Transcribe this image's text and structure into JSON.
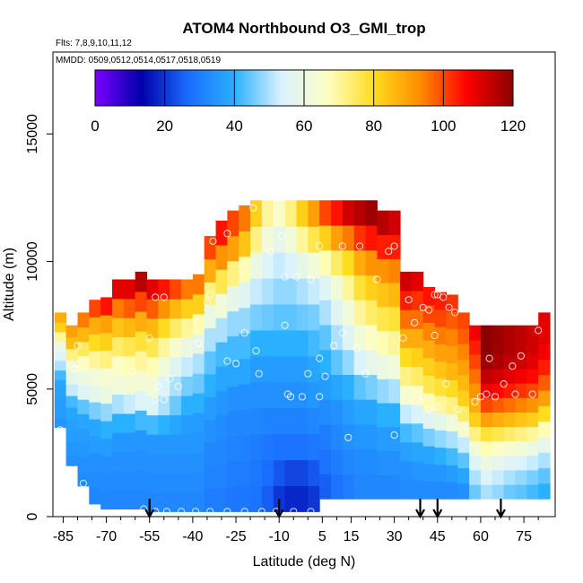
{
  "chart_data": {
    "type": "heatmap",
    "title": "ATOM4 Northbound O3_GMI_trop",
    "flights_label": "Flts: 7,8,9,10,11,12",
    "dates_label": "MMDD: 0509,0512,0514,0517,0518,0519",
    "xlabel": "Latitude (deg N)",
    "ylabel": "Altitude (m)",
    "xlim": [
      -87,
      84
    ],
    "ylim": [
      0,
      18000
    ],
    "x_ticks": [
      -85,
      -70,
      -55,
      -40,
      -25,
      -10,
      5,
      15,
      30,
      45,
      60,
      75
    ],
    "x_minor_ticks": [
      -80,
      -75,
      -65,
      -60,
      -50,
      -45,
      -35,
      -30,
      -20,
      -15,
      -5,
      0,
      10,
      20,
      25,
      35,
      40,
      50,
      55,
      65,
      70,
      80
    ],
    "y_ticks": [
      0,
      5000,
      10000,
      15000
    ],
    "colorbar": {
      "min": 0,
      "max": 120,
      "ticks": [
        0,
        20,
        40,
        60,
        80,
        100,
        120
      ],
      "colors": [
        "#7b00ff",
        "#0000aa",
        "#1a6cff",
        "#29b0ff",
        "#d8f2ff",
        "#ffffc4",
        "#ffdc1e",
        "#ff8c00",
        "#ff0000",
        "#8b0000"
      ],
      "unit": ""
    },
    "profile_markers_lat": [
      -55,
      -10,
      39,
      45,
      67
    ],
    "columns": [
      {
        "lat": -86,
        "top": 8000,
        "bottom": 3500,
        "values": [
          35,
          36,
          36,
          37,
          38,
          42,
          50,
          55,
          60,
          70,
          82,
          88
        ]
      },
      {
        "lat": -82,
        "top": 7500,
        "bottom": 2000,
        "values": [
          34,
          35,
          36,
          37,
          38,
          42,
          52,
          58,
          62,
          72,
          85,
          90
        ]
      },
      {
        "lat": -78,
        "top": 8000,
        "bottom": 1200,
        "values": [
          33,
          34,
          35,
          36,
          38,
          44,
          55,
          60,
          66,
          75,
          86,
          95
        ]
      },
      {
        "lat": -74,
        "top": 8500,
        "bottom": 500,
        "values": [
          32,
          33,
          34,
          36,
          38,
          46,
          58,
          62,
          70,
          80,
          88,
          100
        ]
      },
      {
        "lat": -70,
        "top": 8600,
        "bottom": 300,
        "values": [
          32,
          33,
          34,
          36,
          40,
          48,
          60,
          64,
          72,
          82,
          90,
          105
        ]
      },
      {
        "lat": -66,
        "top": 9300,
        "bottom": 300,
        "values": [
          32,
          33,
          34,
          35,
          40,
          50,
          62,
          66,
          74,
          84,
          95,
          110
        ]
      },
      {
        "lat": -62,
        "top": 9300,
        "bottom": 300,
        "values": [
          32,
          33,
          34,
          35,
          40,
          52,
          63,
          68,
          76,
          86,
          98,
          110
        ]
      },
      {
        "lat": -58,
        "top": 9600,
        "bottom": 300,
        "values": [
          32,
          33,
          34,
          35,
          42,
          55,
          63,
          70,
          78,
          88,
          100,
          115
        ]
      },
      {
        "lat": -54,
        "top": 9300,
        "bottom": 200,
        "values": [
          32,
          33,
          34,
          35,
          42,
          55,
          62,
          68,
          76,
          86,
          98,
          110
        ]
      },
      {
        "lat": -50,
        "top": 9300,
        "bottom": 200,
        "values": [
          32,
          33,
          34,
          35,
          40,
          50,
          55,
          62,
          70,
          80,
          92,
          105
        ]
      },
      {
        "lat": -46,
        "top": 9300,
        "bottom": 200,
        "values": [
          32,
          33,
          34,
          35,
          38,
          45,
          50,
          56,
          64,
          74,
          86,
          100
        ]
      },
      {
        "lat": -42,
        "top": 9300,
        "bottom": 200,
        "values": [
          32,
          33,
          34,
          35,
          36,
          40,
          46,
          52,
          60,
          70,
          82,
          95
        ]
      },
      {
        "lat": -38,
        "top": 9500,
        "bottom": 200,
        "values": [
          32,
          33,
          34,
          35,
          36,
          40,
          45,
          50,
          58,
          68,
          82,
          95
        ]
      },
      {
        "lat": -34,
        "top": 11000,
        "bottom": 200,
        "values": [
          30,
          31,
          32,
          34,
          36,
          40,
          44,
          50,
          60,
          72,
          88,
          100
        ]
      },
      {
        "lat": -30,
        "top": 11600,
        "bottom": 200,
        "values": [
          30,
          31,
          32,
          33,
          35,
          38,
          42,
          50,
          62,
          76,
          92,
          105
        ]
      },
      {
        "lat": -26,
        "top": 12000,
        "bottom": 200,
        "values": [
          29,
          30,
          31,
          32,
          34,
          38,
          42,
          48,
          58,
          72,
          90,
          100
        ]
      },
      {
        "lat": -22,
        "top": 12200,
        "bottom": 200,
        "values": [
          29,
          30,
          31,
          32,
          34,
          38,
          42,
          48,
          56,
          68,
          84,
          95
        ]
      },
      {
        "lat": -18,
        "top": 12400,
        "bottom": 200,
        "values": [
          28,
          29,
          30,
          32,
          34,
          36,
          40,
          46,
          52,
          60,
          72,
          82
        ]
      },
      {
        "lat": -14,
        "top": 12400,
        "bottom": 200,
        "values": [
          25,
          27,
          29,
          31,
          34,
          36,
          40,
          45,
          50,
          55,
          62,
          70
        ]
      },
      {
        "lat": -10,
        "top": 12400,
        "bottom": 200,
        "values": [
          20,
          24,
          28,
          31,
          34,
          36,
          40,
          44,
          48,
          52,
          58,
          65
        ]
      },
      {
        "lat": -6,
        "top": 12400,
        "bottom": 200,
        "values": [
          18,
          22,
          28,
          31,
          34,
          36,
          40,
          44,
          48,
          54,
          62,
          72
        ]
      },
      {
        "lat": -2,
        "top": 12400,
        "bottom": 200,
        "values": [
          18,
          22,
          28,
          31,
          34,
          36,
          40,
          45,
          50,
          58,
          70,
          82
        ]
      },
      {
        "lat": 2,
        "top": 12400,
        "bottom": 200,
        "values": [
          20,
          24,
          29,
          32,
          35,
          38,
          42,
          46,
          52,
          62,
          76,
          90
        ]
      },
      {
        "lat": 6,
        "top": 12400,
        "bottom": 700,
        "values": [
          25,
          28,
          30,
          33,
          36,
          40,
          44,
          50,
          56,
          68,
          82,
          100
        ]
      },
      {
        "lat": 10,
        "top": 12400,
        "bottom": 700,
        "values": [
          28,
          30,
          32,
          34,
          38,
          44,
          50,
          56,
          62,
          74,
          90,
          105
        ]
      },
      {
        "lat": 14,
        "top": 12400,
        "bottom": 700,
        "values": [
          30,
          32,
          34,
          36,
          40,
          48,
          56,
          62,
          70,
          80,
          95,
          112
        ]
      },
      {
        "lat": 18,
        "top": 12400,
        "bottom": 700,
        "values": [
          32,
          33,
          35,
          38,
          44,
          54,
          62,
          70,
          78,
          88,
          102,
          115
        ]
      },
      {
        "lat": 22,
        "top": 12400,
        "bottom": 700,
        "values": [
          32,
          33,
          35,
          38,
          46,
          58,
          66,
          74,
          82,
          92,
          105,
          118
        ]
      },
      {
        "lat": 26,
        "top": 12000,
        "bottom": 700,
        "values": [
          32,
          34,
          36,
          40,
          48,
          60,
          68,
          76,
          84,
          92,
          104,
          115
        ]
      },
      {
        "lat": 30,
        "top": 12000,
        "bottom": 700,
        "values": [
          32,
          34,
          36,
          40,
          50,
          62,
          70,
          78,
          86,
          94,
          104,
          112
        ]
      },
      {
        "lat": 34,
        "top": 9600,
        "bottom": 700,
        "values": [
          33,
          34,
          37,
          42,
          52,
          64,
          72,
          80,
          88,
          96,
          104,
          112
        ]
      },
      {
        "lat": 38,
        "top": 9600,
        "bottom": 700,
        "values": [
          33,
          35,
          38,
          44,
          54,
          66,
          74,
          82,
          88,
          96,
          102,
          110
        ]
      },
      {
        "lat": 42,
        "top": 9000,
        "bottom": 700,
        "values": [
          33,
          35,
          38,
          46,
          56,
          68,
          76,
          82,
          88,
          94,
          100,
          105
        ]
      },
      {
        "lat": 46,
        "top": 8800,
        "bottom": 700,
        "values": [
          33,
          35,
          40,
          48,
          58,
          70,
          78,
          84,
          90,
          95,
          100,
          104
        ]
      },
      {
        "lat": 50,
        "top": 8700,
        "bottom": 700,
        "values": [
          33,
          36,
          42,
          50,
          62,
          72,
          80,
          86,
          90,
          94,
          98,
          102
        ]
      },
      {
        "lat": 54,
        "top": 8000,
        "bottom": 700,
        "values": [
          34,
          38,
          44,
          52,
          64,
          74,
          82,
          86,
          90,
          94,
          98,
          100
        ]
      },
      {
        "lat": 58,
        "top": 7500,
        "bottom": 700,
        "values": [
          45,
          50,
          55,
          62,
          72,
          82,
          88,
          92,
          96,
          100,
          104,
          108
        ]
      },
      {
        "lat": 62,
        "top": 7500,
        "bottom": 700,
        "values": [
          50,
          55,
          60,
          68,
          78,
          90,
          100,
          108,
          114,
          118,
          120,
          120
        ]
      },
      {
        "lat": 66,
        "top": 7500,
        "bottom": 700,
        "values": [
          48,
          52,
          58,
          66,
          76,
          88,
          98,
          106,
          112,
          116,
          118,
          118
        ]
      },
      {
        "lat": 70,
        "top": 7500,
        "bottom": 700,
        "values": [
          45,
          50,
          56,
          64,
          74,
          86,
          96,
          104,
          110,
          114,
          116,
          116
        ]
      },
      {
        "lat": 74,
        "top": 7500,
        "bottom": 700,
        "values": [
          44,
          48,
          54,
          62,
          72,
          84,
          94,
          102,
          108,
          112,
          114,
          114
        ]
      },
      {
        "lat": 78,
        "top": 7500,
        "bottom": 700,
        "values": [
          42,
          46,
          52,
          60,
          70,
          82,
          92,
          100,
          106,
          110,
          112,
          112
        ]
      },
      {
        "lat": 82,
        "top": 8000,
        "bottom": 700,
        "values": [
          40,
          44,
          50,
          58,
          68,
          80,
          90,
          98,
          104,
          108,
          110,
          110
        ]
      }
    ],
    "observations": [
      {
        "lat": -86,
        "alt": 3400
      },
      {
        "lat": -78,
        "alt": 1300
      },
      {
        "lat": -80,
        "alt": 6700
      },
      {
        "lat": -81,
        "alt": 5800
      },
      {
        "lat": -61,
        "alt": 5700
      },
      {
        "lat": -55,
        "alt": 7000
      },
      {
        "lat": -53,
        "alt": 8600
      },
      {
        "lat": -50,
        "alt": 8600
      },
      {
        "lat": -53,
        "alt": 4600
      },
      {
        "lat": -50,
        "alt": 4600
      },
      {
        "lat": -52,
        "alt": 5100
      },
      {
        "lat": -48,
        "alt": 5400
      },
      {
        "lat": -45,
        "alt": 5100
      },
      {
        "lat": -38,
        "alt": 6800
      },
      {
        "lat": -35,
        "alt": 8400
      },
      {
        "lat": -34,
        "alt": 8700
      },
      {
        "lat": -33,
        "alt": 10800
      },
      {
        "lat": -28,
        "alt": 11100
      },
      {
        "lat": -28,
        "alt": 6100
      },
      {
        "lat": -25,
        "alt": 6000
      },
      {
        "lat": -22,
        "alt": 7200
      },
      {
        "lat": -18,
        "alt": 6500
      },
      {
        "lat": -17,
        "alt": 5600
      },
      {
        "lat": -19,
        "alt": 12100
      },
      {
        "lat": -13,
        "alt": 10400
      },
      {
        "lat": -9,
        "alt": 11000
      },
      {
        "lat": -8,
        "alt": 9400
      },
      {
        "lat": -4,
        "alt": 9400
      },
      {
        "lat": -8,
        "alt": 7500
      },
      {
        "lat": -7,
        "alt": 4800
      },
      {
        "lat": -6,
        "alt": 4700
      },
      {
        "lat": -2,
        "alt": 4700
      },
      {
        "lat": 0,
        "alt": 5600
      },
      {
        "lat": 1,
        "alt": 9300
      },
      {
        "lat": 4,
        "alt": 10600
      },
      {
        "lat": 4,
        "alt": 4700
      },
      {
        "lat": 4,
        "alt": 6200
      },
      {
        "lat": 6,
        "alt": 5500
      },
      {
        "lat": 9,
        "alt": 6700
      },
      {
        "lat": 12,
        "alt": 10600
      },
      {
        "lat": 12,
        "alt": 7200
      },
      {
        "lat": 14,
        "alt": 3100
      },
      {
        "lat": 17,
        "alt": 6600
      },
      {
        "lat": 18,
        "alt": 10600
      },
      {
        "lat": 20,
        "alt": 5600
      },
      {
        "lat": 24,
        "alt": 9300
      },
      {
        "lat": 28,
        "alt": 10400
      },
      {
        "lat": 30,
        "alt": 10600
      },
      {
        "lat": 30,
        "alt": 3200
      },
      {
        "lat": 33,
        "alt": 7000
      },
      {
        "lat": 35,
        "alt": 8500
      },
      {
        "lat": 37,
        "alt": 7600
      },
      {
        "lat": 40,
        "alt": 8200
      },
      {
        "lat": 42,
        "alt": 8100
      },
      {
        "lat": 44,
        "alt": 8700
      },
      {
        "lat": 45,
        "alt": 8700
      },
      {
        "lat": 47,
        "alt": 8600
      },
      {
        "lat": 49,
        "alt": 8200
      },
      {
        "lat": 51,
        "alt": 8000
      },
      {
        "lat": 44,
        "alt": 7100
      },
      {
        "lat": 40,
        "alt": 4700
      },
      {
        "lat": 42,
        "alt": 4200
      },
      {
        "lat": 45,
        "alt": 4300
      },
      {
        "lat": 48,
        "alt": 5200
      },
      {
        "lat": 52,
        "alt": 4200
      },
      {
        "lat": 58,
        "alt": 4500
      },
      {
        "lat": 60,
        "alt": 4700
      },
      {
        "lat": 62,
        "alt": 4800
      },
      {
        "lat": 63,
        "alt": 6200
      },
      {
        "lat": 65,
        "alt": 4700
      },
      {
        "lat": 68,
        "alt": 5200
      },
      {
        "lat": 71,
        "alt": 5900
      },
      {
        "lat": 72,
        "alt": 4800
      },
      {
        "lat": 74,
        "alt": 6300
      },
      {
        "lat": 78,
        "alt": 4800
      },
      {
        "lat": 80,
        "alt": 7300
      },
      {
        "lat": -57,
        "alt": 300
      },
      {
        "lat": -53,
        "alt": 200
      },
      {
        "lat": -49,
        "alt": 200
      },
      {
        "lat": -44,
        "alt": 200
      },
      {
        "lat": -39,
        "alt": 200
      },
      {
        "lat": -34,
        "alt": 200
      },
      {
        "lat": -28,
        "alt": 200
      },
      {
        "lat": -22,
        "alt": 200
      },
      {
        "lat": -16,
        "alt": 200
      },
      {
        "lat": -11,
        "alt": 200
      },
      {
        "lat": -5,
        "alt": 200
      },
      {
        "lat": 1,
        "alt": 200
      },
      {
        "lat": 6,
        "alt": 200
      },
      {
        "lat": 10,
        "alt": 300
      },
      {
        "lat": 17,
        "alt": 300
      },
      {
        "lat": 22,
        "alt": 300
      },
      {
        "lat": 45,
        "alt": 300
      },
      {
        "lat": 50,
        "alt": 300
      },
      {
        "lat": 58,
        "alt": 300
      },
      {
        "lat": 61,
        "alt": 500
      },
      {
        "lat": 63,
        "alt": 300
      },
      {
        "lat": 66,
        "alt": 200
      },
      {
        "lat": 70,
        "alt": 200
      },
      {
        "lat": 76,
        "alt": 200
      },
      {
        "lat": 81,
        "alt": 200
      }
    ]
  }
}
